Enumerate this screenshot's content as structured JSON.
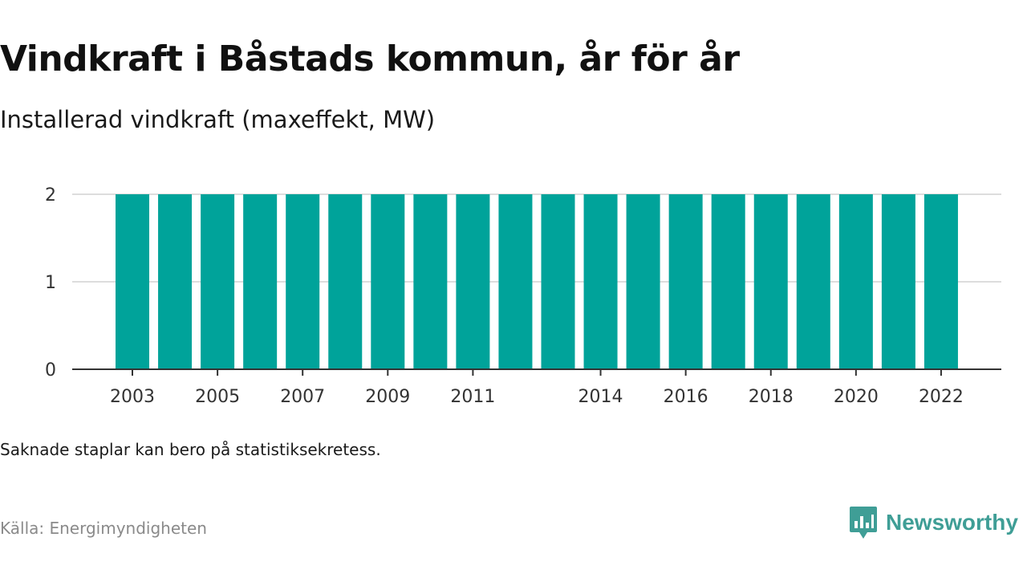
{
  "header": {
    "title": "Vindkraft i Båstads kommun, år för år",
    "subtitle": "Installerad vindkraft (maxeffekt, MW)"
  },
  "footer": {
    "note": "Saknade staplar kan bero på statistiksekretess.",
    "source": "Källa: Energimyndigheten"
  },
  "logo": {
    "text": "Newsworthy",
    "icon": "bar-chart-speech-bubble-icon"
  },
  "colors": {
    "bar": "#00a39a",
    "brand": "#3f9e96",
    "grid": "#dddddd",
    "axis": "#333333"
  },
  "chart_data": {
    "type": "bar",
    "title": "Vindkraft i Båstads kommun, år för år",
    "subtitle": "Installerad vindkraft (maxeffekt, MW)",
    "xlabel": "",
    "ylabel": "",
    "categories": [
      "2003",
      "2004",
      "2005",
      "2006",
      "2007",
      "2008",
      "2009",
      "2010",
      "2011",
      "2012",
      "2013",
      "2014",
      "2015",
      "2016",
      "2017",
      "2018",
      "2019",
      "2020",
      "2021",
      "2022"
    ],
    "values": [
      2,
      2,
      2,
      2,
      2,
      2,
      2,
      2,
      2,
      2,
      2,
      2,
      2,
      2,
      2,
      2,
      2,
      2,
      2,
      2
    ],
    "x_tick_labels": [
      "2003",
      "2005",
      "2007",
      "2009",
      "2011",
      "2014",
      "2016",
      "2018",
      "2020",
      "2022"
    ],
    "y_ticks": [
      0,
      1,
      2
    ],
    "ylim": [
      0,
      2
    ],
    "grid": "horizontal",
    "legend": "none"
  }
}
